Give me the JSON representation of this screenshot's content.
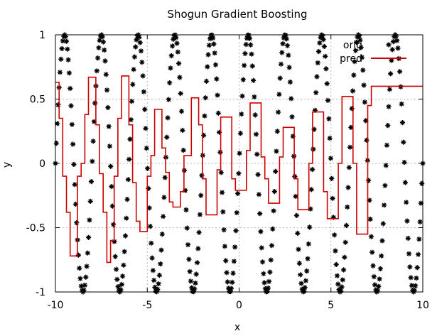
{
  "chart_data": {
    "type": "line",
    "title": "Shogun Gradient Boosting",
    "xlabel": "x",
    "ylabel": "y",
    "xlim": [
      -10,
      10
    ],
    "ylim": [
      -1,
      1
    ],
    "grid": true,
    "legend_position": "top-right",
    "xticks": [
      -10,
      -5,
      0,
      5,
      10
    ],
    "xtick_labels": [
      "-10",
      "-5",
      "0",
      "5",
      "10"
    ],
    "yticks": [
      -1,
      -0.5,
      0,
      0.5,
      1
    ],
    "ytick_labels": [
      "-1",
      "-0.5",
      "0",
      "0.5",
      "1"
    ],
    "series": [
      {
        "name": "orig",
        "style": "points",
        "marker": "star",
        "color": "#000000",
        "formula": "y = sin(pi * x)",
        "x_range": [
          -10,
          10
        ],
        "n_points": 400
      },
      {
        "name": "pred",
        "style": "steps",
        "color": "#cc0000",
        "x": [
          -10.0,
          -9.8,
          -9.6,
          -9.4,
          -9.2,
          -9.0,
          -8.8,
          -8.6,
          -8.4,
          -8.2,
          -8.0,
          -7.8,
          -7.6,
          -7.4,
          -7.2,
          -7.0,
          -6.8,
          -6.6,
          -6.4,
          -6.2,
          -6.0,
          -5.8,
          -5.6,
          -5.4,
          -5.2,
          -5.0,
          -4.8,
          -4.6,
          -4.4,
          -4.2,
          -4.0,
          -3.8,
          -3.6,
          -3.4,
          -3.2,
          -3.0,
          -2.8,
          -2.6,
          -2.4,
          -2.2,
          -2.0,
          -1.8,
          -1.6,
          -1.4,
          -1.2,
          -1.0,
          -0.8,
          -0.6,
          -0.4,
          -0.2,
          0.0,
          0.2,
          0.4,
          0.6,
          0.8,
          1.0,
          1.2,
          1.4,
          1.6,
          1.8,
          2.0,
          2.2,
          2.4,
          2.6,
          2.8,
          3.0,
          3.2,
          3.4,
          3.6,
          3.8,
          4.0,
          4.2,
          4.4,
          4.6,
          4.8,
          5.0,
          5.2,
          5.4,
          5.6,
          5.8,
          6.0,
          6.2,
          6.4,
          6.6,
          6.8,
          7.0,
          7.2,
          7.4,
          7.6,
          7.8,
          8.0,
          8.2,
          8.4,
          8.6,
          8.8,
          9.0,
          9.2,
          9.4,
          9.6,
          9.8,
          10.0
        ],
        "values": [
          0.63,
          0.35,
          -0.1,
          -0.38,
          -0.72,
          -0.72,
          -0.1,
          0.0,
          0.38,
          0.67,
          0.67,
          0.3,
          -0.08,
          -0.38,
          -0.77,
          -0.6,
          -0.1,
          0.35,
          0.68,
          0.68,
          0.3,
          -0.15,
          -0.45,
          -0.53,
          -0.53,
          -0.1,
          0.06,
          0.42,
          0.42,
          0.12,
          -0.07,
          -0.3,
          -0.34,
          -0.34,
          -0.22,
          0.06,
          0.06,
          0.51,
          0.51,
          0.3,
          -0.12,
          -0.4,
          -0.4,
          -0.4,
          -0.05,
          0.36,
          0.36,
          0.36,
          -0.12,
          -0.21,
          -0.21,
          -0.21,
          0.1,
          0.47,
          0.47,
          0.47,
          0.05,
          -0.12,
          -0.31,
          -0.31,
          -0.31,
          0.05,
          0.28,
          0.28,
          0.28,
          -0.12,
          -0.36,
          -0.36,
          -0.36,
          0.0,
          0.4,
          0.4,
          0.4,
          -0.22,
          -0.43,
          -0.43,
          -0.43,
          0.0,
          0.52,
          0.52,
          0.52,
          0.0,
          -0.55,
          -0.55,
          -0.55,
          0.45,
          0.6,
          0.6,
          0.6,
          0.6,
          0.6,
          0.6,
          0.6,
          0.6,
          0.6,
          0.6,
          0.6,
          0.6,
          0.6,
          0.6,
          0.6
        ]
      }
    ]
  }
}
